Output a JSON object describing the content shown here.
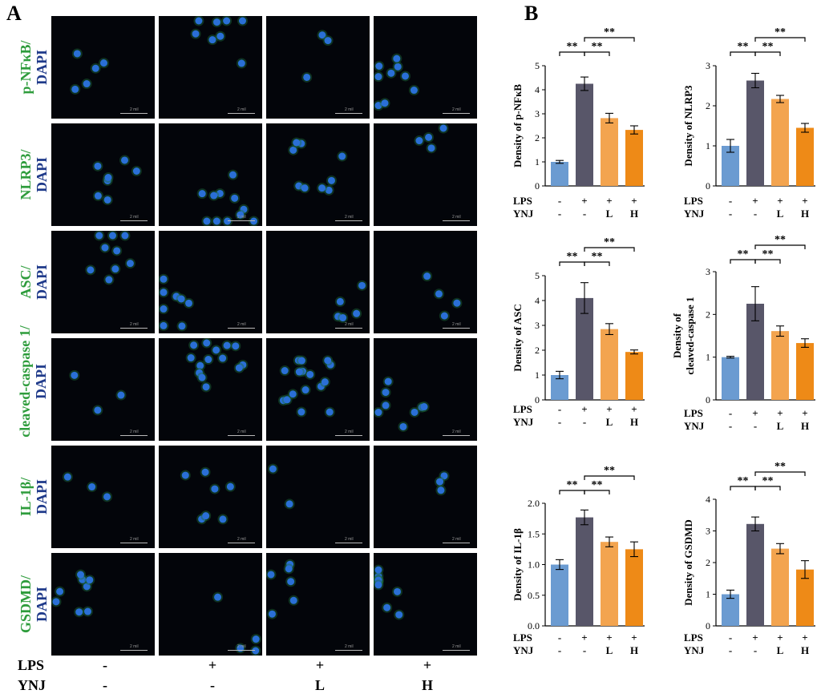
{
  "panel_a_label": "A",
  "panel_b_label": "B",
  "micrograph": {
    "rows": [
      {
        "marker": "p-NFκB/",
        "stain": "DAPI"
      },
      {
        "marker": "NLRP3/",
        "stain": "DAPI"
      },
      {
        "marker": "ASC/",
        "stain": "DAPI"
      },
      {
        "marker": "cleaved-caspase 1/",
        "stain": "DAPI"
      },
      {
        "marker": "IL-1β/",
        "stain": "DAPI"
      },
      {
        "marker": "GSDMD/",
        "stain": "DAPI"
      }
    ],
    "scale_text": "2 mil",
    "conditions": {
      "lps_label": "LPS",
      "ynj_label": "YNJ",
      "lps": [
        "-",
        "+",
        "+",
        "+"
      ],
      "ynj": [
        "-",
        "-",
        "L",
        "H"
      ]
    }
  },
  "colors": {
    "control": "#6b9bd1",
    "lps": "#585669",
    "ynj_l": "#f3a44f",
    "ynj_h": "#ee8a17",
    "green_label": "#2e9c3c",
    "blue_label": "#1f3a8a"
  },
  "chart_data": [
    {
      "type": "bar",
      "ylabel": "Density of p-NFκB",
      "ylim": [
        0,
        5
      ],
      "yticks": [
        "0",
        "1",
        "2",
        "3",
        "4",
        "5"
      ],
      "values": [
        1.0,
        4.25,
        2.82,
        2.33
      ],
      "errors": [
        0.06,
        0.28,
        0.2,
        0.17
      ],
      "categories_lps": [
        "-",
        "+",
        "+",
        "+"
      ],
      "categories_ynj": [
        "-",
        "-",
        "L",
        "H"
      ],
      "row_labels": [
        "LPS",
        "YNJ"
      ],
      "significance": [
        "**",
        "**",
        "**"
      ]
    },
    {
      "type": "bar",
      "ylabel": "Density of NLRP3",
      "ylim": [
        0,
        3
      ],
      "yticks": [
        "0",
        "1",
        "2",
        "3"
      ],
      "values": [
        1.0,
        2.63,
        2.17,
        1.45
      ],
      "errors": [
        0.16,
        0.18,
        0.09,
        0.11
      ],
      "categories_lps": [
        "-",
        "+",
        "+",
        "+"
      ],
      "categories_ynj": [
        "-",
        "-",
        "L",
        "H"
      ],
      "row_labels": [
        "LPS",
        "YNJ"
      ],
      "significance": [
        "**",
        "**",
        "**"
      ]
    },
    {
      "type": "bar",
      "ylabel": "Density of ASC",
      "ylim": [
        0,
        5
      ],
      "yticks": [
        "0",
        "1",
        "2",
        "3",
        "4",
        "5"
      ],
      "values": [
        1.0,
        4.1,
        2.85,
        1.93
      ],
      "errors": [
        0.15,
        0.62,
        0.22,
        0.08
      ],
      "categories_lps": [
        "-",
        "+",
        "+",
        "+"
      ],
      "categories_ynj": [
        "-",
        "-",
        "L",
        "H"
      ],
      "row_labels": [
        "LPS",
        "YNJ"
      ],
      "significance": [
        "**",
        "**",
        "**"
      ]
    },
    {
      "type": "bar",
      "ylabel": [
        "Density of",
        "cleaved-caspase 1"
      ],
      "ylim": [
        0,
        3
      ],
      "yticks": [
        "0",
        "1",
        "2",
        "3"
      ],
      "values": [
        1.0,
        2.25,
        1.61,
        1.33
      ],
      "errors": [
        0.02,
        0.4,
        0.12,
        0.1
      ],
      "categories_lps": [
        "-",
        "+",
        "+",
        "+"
      ],
      "categories_ynj": [
        "-",
        "-",
        "L",
        "H"
      ],
      "row_labels": [
        "LPS",
        "YNJ"
      ],
      "significance": [
        "**",
        "**",
        "**"
      ]
    },
    {
      "type": "bar",
      "ylabel": "Density of IL-1β",
      "ylim": [
        0,
        2.0
      ],
      "yticks": [
        "0.0",
        "0.5",
        "1.0",
        "1.5",
        "2.0"
      ],
      "values": [
        1.0,
        1.77,
        1.37,
        1.25
      ],
      "errors": [
        0.08,
        0.12,
        0.08,
        0.12
      ],
      "categories_lps": [
        "-",
        "+",
        "+",
        "+"
      ],
      "categories_ynj": [
        "-",
        "-",
        "L",
        "H"
      ],
      "row_labels": [
        "LPS",
        "YNJ"
      ],
      "significance": [
        "**",
        "**",
        "**"
      ]
    },
    {
      "type": "bar",
      "ylabel": "Density of GSDMD",
      "ylim": [
        0,
        4
      ],
      "yticks": [
        "0",
        "1",
        "2",
        "3",
        "4"
      ],
      "values": [
        1.0,
        3.22,
        2.44,
        1.78
      ],
      "errors": [
        0.13,
        0.22,
        0.16,
        0.28
      ],
      "categories_lps": [
        "-",
        "+",
        "+",
        "+"
      ],
      "categories_ynj": [
        "-",
        "-",
        "L",
        "H"
      ],
      "row_labels": [
        "LPS",
        "YNJ"
      ],
      "significance": [
        "**",
        "**",
        "**"
      ]
    }
  ]
}
